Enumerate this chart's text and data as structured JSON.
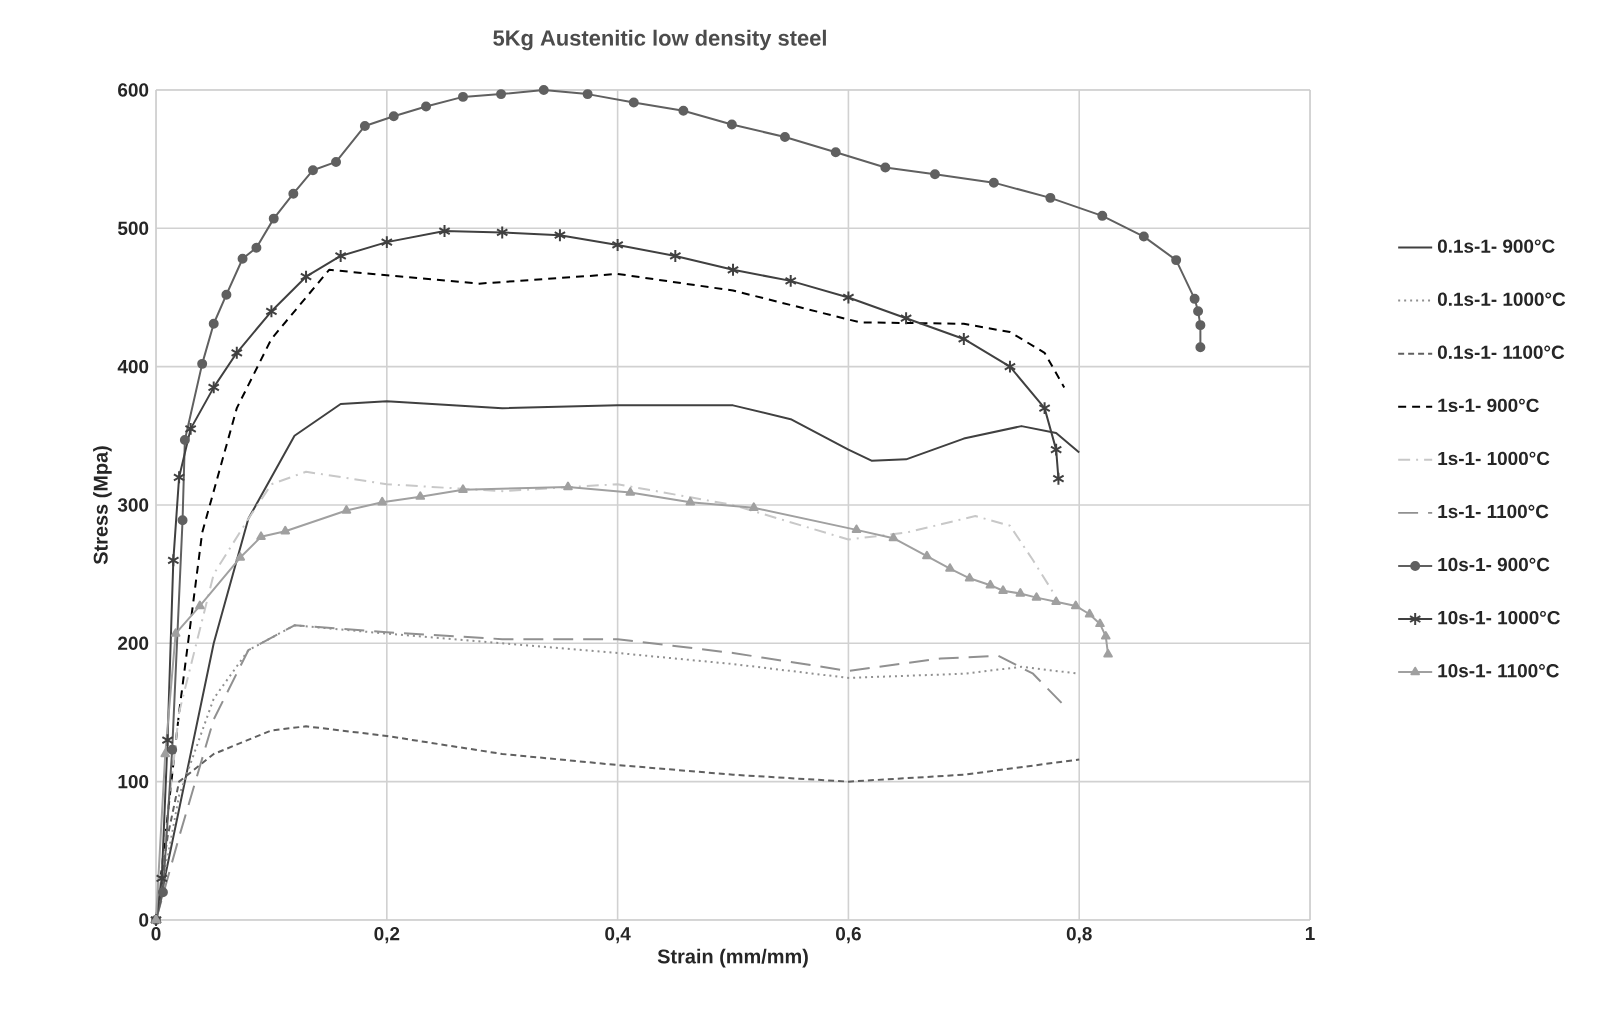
{
  "chart_data": {
    "type": "line",
    "title": "5Kg Austenitic low density steel",
    "xlabel": "Strain (mm/mm)",
    "ylabel": "Stress (Mpa)",
    "xlim": [
      0,
      1
    ],
    "ylim": [
      0,
      600
    ],
    "xticks": [
      0,
      {
        "value": 0.2,
        "label": "0,2"
      },
      {
        "value": 0.4,
        "label": "0,4"
      },
      {
        "value": 0.6,
        "label": "0,6"
      },
      {
        "value": 0.8,
        "label": "0,8"
      },
      1
    ],
    "yticks": [
      0,
      100,
      200,
      300,
      400,
      500,
      600
    ],
    "grid": true,
    "legend": "right",
    "series": [
      {
        "name": "0.1s-1- 900°C",
        "color": "#404040",
        "line_style": "solid",
        "marker": "none",
        "x": [
          0,
          0.02,
          0.05,
          0.08,
          0.12,
          0.16,
          0.2,
          0.3,
          0.4,
          0.5,
          0.55,
          0.6,
          0.62,
          0.65,
          0.7,
          0.75,
          0.78,
          0.8
        ],
        "values": [
          0,
          80,
          200,
          290,
          350,
          373,
          375,
          370,
          372,
          372,
          362,
          340,
          332,
          333,
          348,
          357,
          352,
          338
        ]
      },
      {
        "name": "0.1s-1- 1000°C",
        "color": "#909090",
        "line_style": "dotted",
        "marker": "none",
        "x": [
          0,
          0.02,
          0.05,
          0.08,
          0.12,
          0.2,
          0.3,
          0.4,
          0.5,
          0.6,
          0.7,
          0.75,
          0.8
        ],
        "values": [
          0,
          90,
          160,
          195,
          213,
          207,
          200,
          193,
          185,
          175,
          178,
          183,
          178
        ]
      },
      {
        "name": "0.1s-1- 1100°C",
        "color": "#606060",
        "line_style": "dashed",
        "marker": "none",
        "x": [
          0,
          0.01,
          0.02,
          0.05,
          0.1,
          0.13,
          0.2,
          0.3,
          0.4,
          0.5,
          0.6,
          0.7,
          0.8
        ],
        "values": [
          0,
          60,
          100,
          120,
          137,
          140,
          133,
          120,
          112,
          105,
          100,
          105,
          116
        ]
      },
      {
        "name": "1s-1- 900°C",
        "color": "#000000",
        "line_style": "densedash",
        "marker": "none",
        "x": [
          0,
          0.02,
          0.04,
          0.07,
          0.1,
          0.15,
          0.2,
          0.28,
          0.4,
          0.5,
          0.61,
          0.7,
          0.74,
          0.77,
          0.787
        ],
        "values": [
          0,
          150,
          280,
          370,
          420,
          470,
          466,
          460,
          467,
          455,
          432,
          431,
          425,
          410,
          385
        ]
      },
      {
        "name": "1s-1- 1000°C",
        "color": "#c8c8c8",
        "line_style": "dashdot",
        "marker": "none",
        "x": [
          0,
          0.02,
          0.05,
          0.08,
          0.1,
          0.13,
          0.2,
          0.3,
          0.4,
          0.5,
          0.6,
          0.65,
          0.71,
          0.74,
          0.76,
          0.778
        ],
        "values": [
          0,
          150,
          250,
          290,
          315,
          324,
          315,
          310,
          315,
          300,
          275,
          280,
          292,
          285,
          260,
          236
        ]
      },
      {
        "name": "1s-1- 1100°C",
        "color": "#909090",
        "line_style": "longdash",
        "marker": "none",
        "x": [
          0,
          0.02,
          0.05,
          0.08,
          0.12,
          0.2,
          0.3,
          0.4,
          0.5,
          0.6,
          0.68,
          0.73,
          0.76,
          0.787
        ],
        "values": [
          0,
          60,
          145,
          195,
          213,
          208,
          203,
          203,
          193,
          180,
          189,
          191,
          178,
          155
        ]
      },
      {
        "name": "10s-1- 900°C",
        "color": "#606060",
        "line_style": "solid",
        "marker": "circle",
        "x": [
          0,
          0.006,
          0.014,
          0.023,
          0.025,
          0.04,
          0.05,
          0.061,
          0.075,
          0.087,
          0.102,
          0.119,
          0.136,
          0.156,
          0.181,
          0.206,
          0.234,
          0.266,
          0.299,
          0.336,
          0.374,
          0.414,
          0.457,
          0.499,
          0.545,
          0.589,
          0.632,
          0.675,
          0.726,
          0.775,
          0.82,
          0.856,
          0.884,
          0.9,
          0.903,
          0.905,
          0.905
        ],
        "values": [
          0,
          20,
          123,
          289,
          347,
          402,
          431,
          452,
          478,
          486,
          507,
          525,
          542,
          548,
          574,
          581,
          588,
          595,
          597,
          600,
          597,
          591,
          585,
          575,
          566,
          555,
          544,
          539,
          533,
          522,
          509,
          494,
          477,
          449,
          440,
          430,
          414
        ]
      },
      {
        "name": "10s-1- 1000°C",
        "color": "#404040",
        "line_style": "solid",
        "marker": "cross",
        "x": [
          0,
          0.005,
          0.01,
          0.015,
          0.02,
          0.03,
          0.05,
          0.07,
          0.1,
          0.13,
          0.16,
          0.2,
          0.25,
          0.3,
          0.35,
          0.4,
          0.45,
          0.5,
          0.55,
          0.6,
          0.65,
          0.7,
          0.74,
          0.77,
          0.78,
          0.782
        ],
        "values": [
          0,
          30,
          130,
          260,
          320,
          355,
          385,
          410,
          440,
          465,
          480,
          490,
          498,
          497,
          495,
          488,
          480,
          470,
          462,
          450,
          435,
          420,
          400,
          370,
          340,
          319
        ]
      },
      {
        "name": "10s-1- 1100°C",
        "color": "#a0a0a0",
        "line_style": "solid",
        "marker": "triangle",
        "x": [
          0,
          0.008,
          0.017,
          0.038,
          0.073,
          0.091,
          0.112,
          0.165,
          0.196,
          0.229,
          0.266,
          0.357,
          0.411,
          0.463,
          0.518,
          0.607,
          0.639,
          0.668,
          0.688,
          0.705,
          0.723,
          0.734,
          0.749,
          0.763,
          0.78,
          0.797,
          0.809,
          0.818,
          0.823,
          0.825
        ],
        "values": [
          0,
          120,
          207,
          227,
          262,
          277,
          281,
          296,
          302,
          306,
          311,
          313,
          309,
          302,
          298,
          282,
          276,
          263,
          254,
          247,
          242,
          238,
          236,
          233,
          230,
          227,
          221,
          214,
          205,
          192
        ]
      }
    ]
  }
}
